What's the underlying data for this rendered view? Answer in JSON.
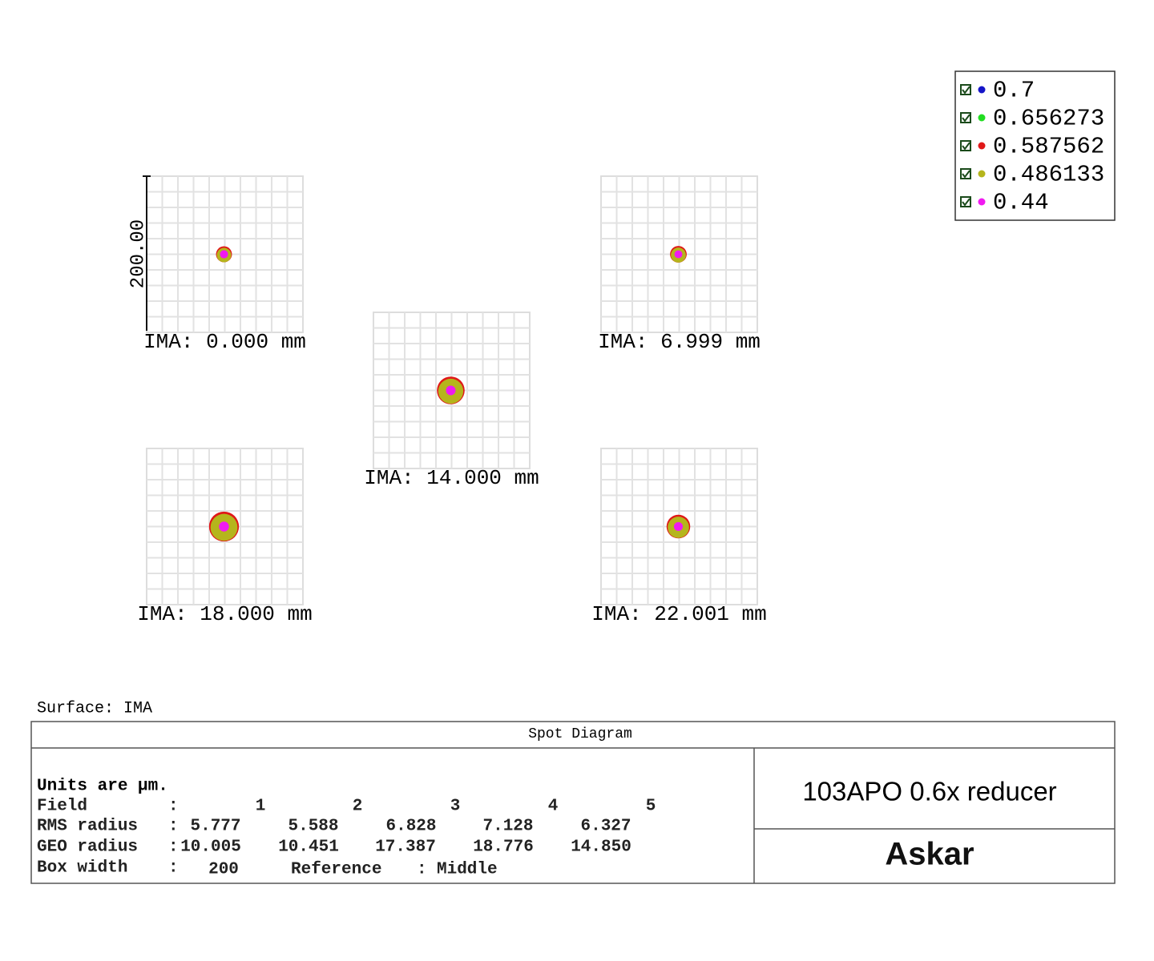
{
  "legend": {
    "items": [
      {
        "label": "0.7",
        "color": "#1515c8"
      },
      {
        "label": "0.656273",
        "color": "#22dd22"
      },
      {
        "label": "0.587562",
        "color": "#e01818"
      },
      {
        "label": "0.486133",
        "color": "#b5b51c"
      },
      {
        "label": "0.44",
        "color": "#f01af0"
      }
    ]
  },
  "scale_label": "200.00",
  "fields": [
    {
      "label": "IMA: 0.000 mm"
    },
    {
      "label": "IMA: 6.999 mm"
    },
    {
      "label": "IMA: 14.000 mm"
    },
    {
      "label": "IMA: 18.000 mm"
    },
    {
      "label": "IMA: 22.001 mm"
    }
  ],
  "surface": "Surface: IMA",
  "table": {
    "title": "Spot Diagram",
    "units": "Units are µm.",
    "separator": ":",
    "field_label": "Field",
    "field_numbers": [
      1,
      2,
      3,
      4,
      5
    ],
    "rms_label": "RMS radius",
    "rms": [
      5.777,
      5.588,
      6.828,
      7.128,
      6.327
    ],
    "geo_label": "GEO radius",
    "geo": [
      10.005,
      10.451,
      17.387,
      18.776,
      {
        "value": 14.85,
        "label": "14.850"
      }
    ],
    "box_label": "Box width",
    "box_width": 200,
    "reference_label": "Reference",
    "reference": "Middle",
    "product": "103APO 0.6x reducer",
    "brand": "Askar"
  }
}
